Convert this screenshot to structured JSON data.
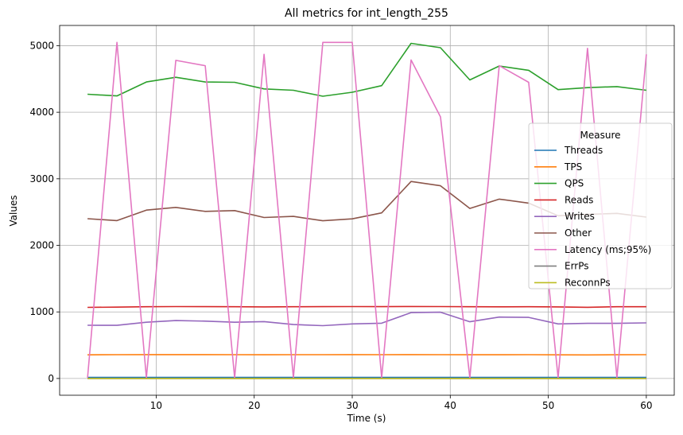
{
  "chart_data": {
    "type": "line",
    "title": "All metrics for int_length_255",
    "xlabel": "Time (s)",
    "ylabel": "Values",
    "xlim": [
      0.15,
      62.85
    ],
    "ylim": [
      -252,
      5304
    ],
    "xticks": [
      10,
      20,
      30,
      40,
      50,
      60
    ],
    "yticks": [
      0,
      1000,
      2000,
      3000,
      4000,
      5000
    ],
    "grid": true,
    "legend": {
      "title": "Measure",
      "placement": "right"
    },
    "x": [
      3,
      6,
      9,
      12,
      15,
      18,
      21,
      24,
      27,
      30,
      33,
      36,
      39,
      42,
      45,
      48,
      51,
      54,
      57,
      60
    ],
    "series": [
      {
        "name": "Threads",
        "color": "#1f77b4",
        "values": [
          16,
          16,
          16,
          16,
          16,
          16,
          16,
          16,
          16,
          16,
          16,
          16,
          16,
          16,
          16,
          16,
          16,
          16,
          16,
          16
        ]
      },
      {
        "name": "TPS",
        "color": "#ff7f0e",
        "values": [
          355,
          357,
          358,
          359,
          358,
          357,
          356,
          357,
          357,
          358,
          357,
          358,
          357,
          356,
          356,
          357,
          355,
          354,
          356,
          357
        ]
      },
      {
        "name": "QPS",
        "color": "#2ca02c",
        "values": [
          4270,
          4245,
          4455,
          4525,
          4455,
          4450,
          4350,
          4330,
          4240,
          4300,
          4400,
          5035,
          4970,
          4485,
          4695,
          4630,
          4340,
          4370,
          4385,
          4330
        ]
      },
      {
        "name": "Reads",
        "color": "#d62728",
        "values": [
          1068,
          1072,
          1078,
          1080,
          1079,
          1078,
          1076,
          1078,
          1079,
          1080,
          1079,
          1081,
          1080,
          1078,
          1077,
          1078,
          1076,
          1070,
          1078,
          1078
        ]
      },
      {
        "name": "Writes",
        "color": "#9467bd",
        "values": [
          800,
          798,
          845,
          870,
          862,
          845,
          855,
          810,
          793,
          820,
          830,
          990,
          995,
          852,
          922,
          918,
          820,
          828,
          828,
          835
        ]
      },
      {
        "name": "Other",
        "color": "#8c564b",
        "values": [
          2400,
          2372,
          2530,
          2570,
          2510,
          2523,
          2418,
          2435,
          2370,
          2398,
          2488,
          2960,
          2895,
          2555,
          2695,
          2635,
          2445,
          2465,
          2480,
          2425
        ]
      },
      {
        "name": "Latency (ms;95%)",
        "color": "#e377c2",
        "values": [
          10,
          5050,
          10,
          4780,
          4700,
          10,
          4870,
          10,
          5050,
          5050,
          10,
          4785,
          3930,
          10,
          4700,
          4450,
          10,
          4960,
          10,
          4870
        ]
      },
      {
        "name": "ErrPs",
        "color": "#7f7f7f",
        "values": [
          0,
          0,
          0,
          0,
          0,
          0,
          0,
          0,
          0,
          0,
          0,
          0,
          0,
          0,
          0,
          0,
          0,
          0,
          0,
          0
        ]
      },
      {
        "name": "ReconnPs",
        "color": "#bcbd22",
        "values": [
          0,
          0,
          0,
          0,
          0,
          0,
          0,
          0,
          0,
          0,
          0,
          0,
          0,
          0,
          0,
          0,
          0,
          0,
          0,
          0
        ]
      }
    ]
  }
}
